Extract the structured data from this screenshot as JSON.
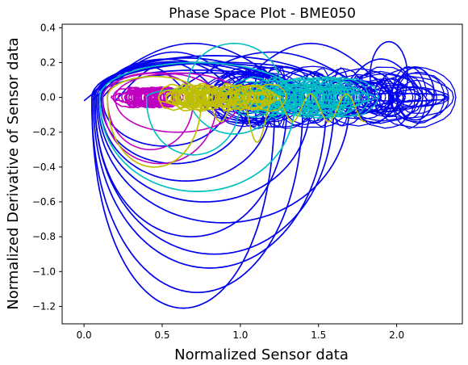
{
  "chart_data": {
    "type": "line",
    "title": "Phase Space Plot - BME050",
    "xlabel": "Normalized Sensor data",
    "ylabel": "Normalized Derivative of Sensor data",
    "xlim": [
      -0.14,
      2.42
    ],
    "ylim": [
      -1.3,
      0.42
    ],
    "xticks": [
      "0.0",
      "0.5",
      "1.0",
      "1.5",
      "2.0"
    ],
    "yticks": [
      "0.4",
      "0.2",
      "0.0",
      "−0.2",
      "−0.4",
      "−0.6",
      "−0.8",
      "−1.0",
      "−1.2"
    ],
    "grid": false,
    "legend": "none",
    "series_colors": [
      "#0000ee",
      "#c000c0",
      "#00bfbf",
      "#bfbf00"
    ],
    "series": [
      {
        "color": "#0000ee",
        "description_of_shape": "large negative loops from near x=0 to x~2.2, dense oscillatory band around y=0 between x=1.0 and x=2.2",
        "loops": [
          {
            "x0": 0.05,
            "x1": 1.22,
            "ymin": -1.21
          },
          {
            "x0": 0.05,
            "x1": 1.4,
            "ymin": -1.12
          },
          {
            "x0": 0.06,
            "x1": 1.55,
            "ymin": -0.98
          },
          {
            "x0": 0.07,
            "x1": 1.6,
            "ymin": -0.9
          },
          {
            "x0": 0.07,
            "x1": 1.3,
            "ymin": -0.8
          },
          {
            "x0": 0.08,
            "x1": 1.7,
            "ymin": -0.72
          },
          {
            "x0": 0.09,
            "x1": 1.45,
            "ymin": -0.6
          },
          {
            "x0": 0.1,
            "x1": 1.2,
            "ymin": -0.48
          },
          {
            "x0": 0.11,
            "x1": 1.05,
            "ymin": -0.38
          },
          {
            "x0": 0.12,
            "x1": 0.92,
            "ymin": -0.28
          }
        ]
      },
      {
        "color": "#c000c0",
        "description_of_shape": "loops reaching about -0.38, dense cluster near x=0.3 to 0.5"
      },
      {
        "color": "#00bfbf",
        "description_of_shape": "wide loop down to about -0.54, dense cluster near x=1.2 to 1.5"
      },
      {
        "color": "#bfbf00",
        "description_of_shape": "loop down to about -0.40 starting near x=0.15, dense cluster near x=0.7 to 1.2"
      }
    ]
  }
}
